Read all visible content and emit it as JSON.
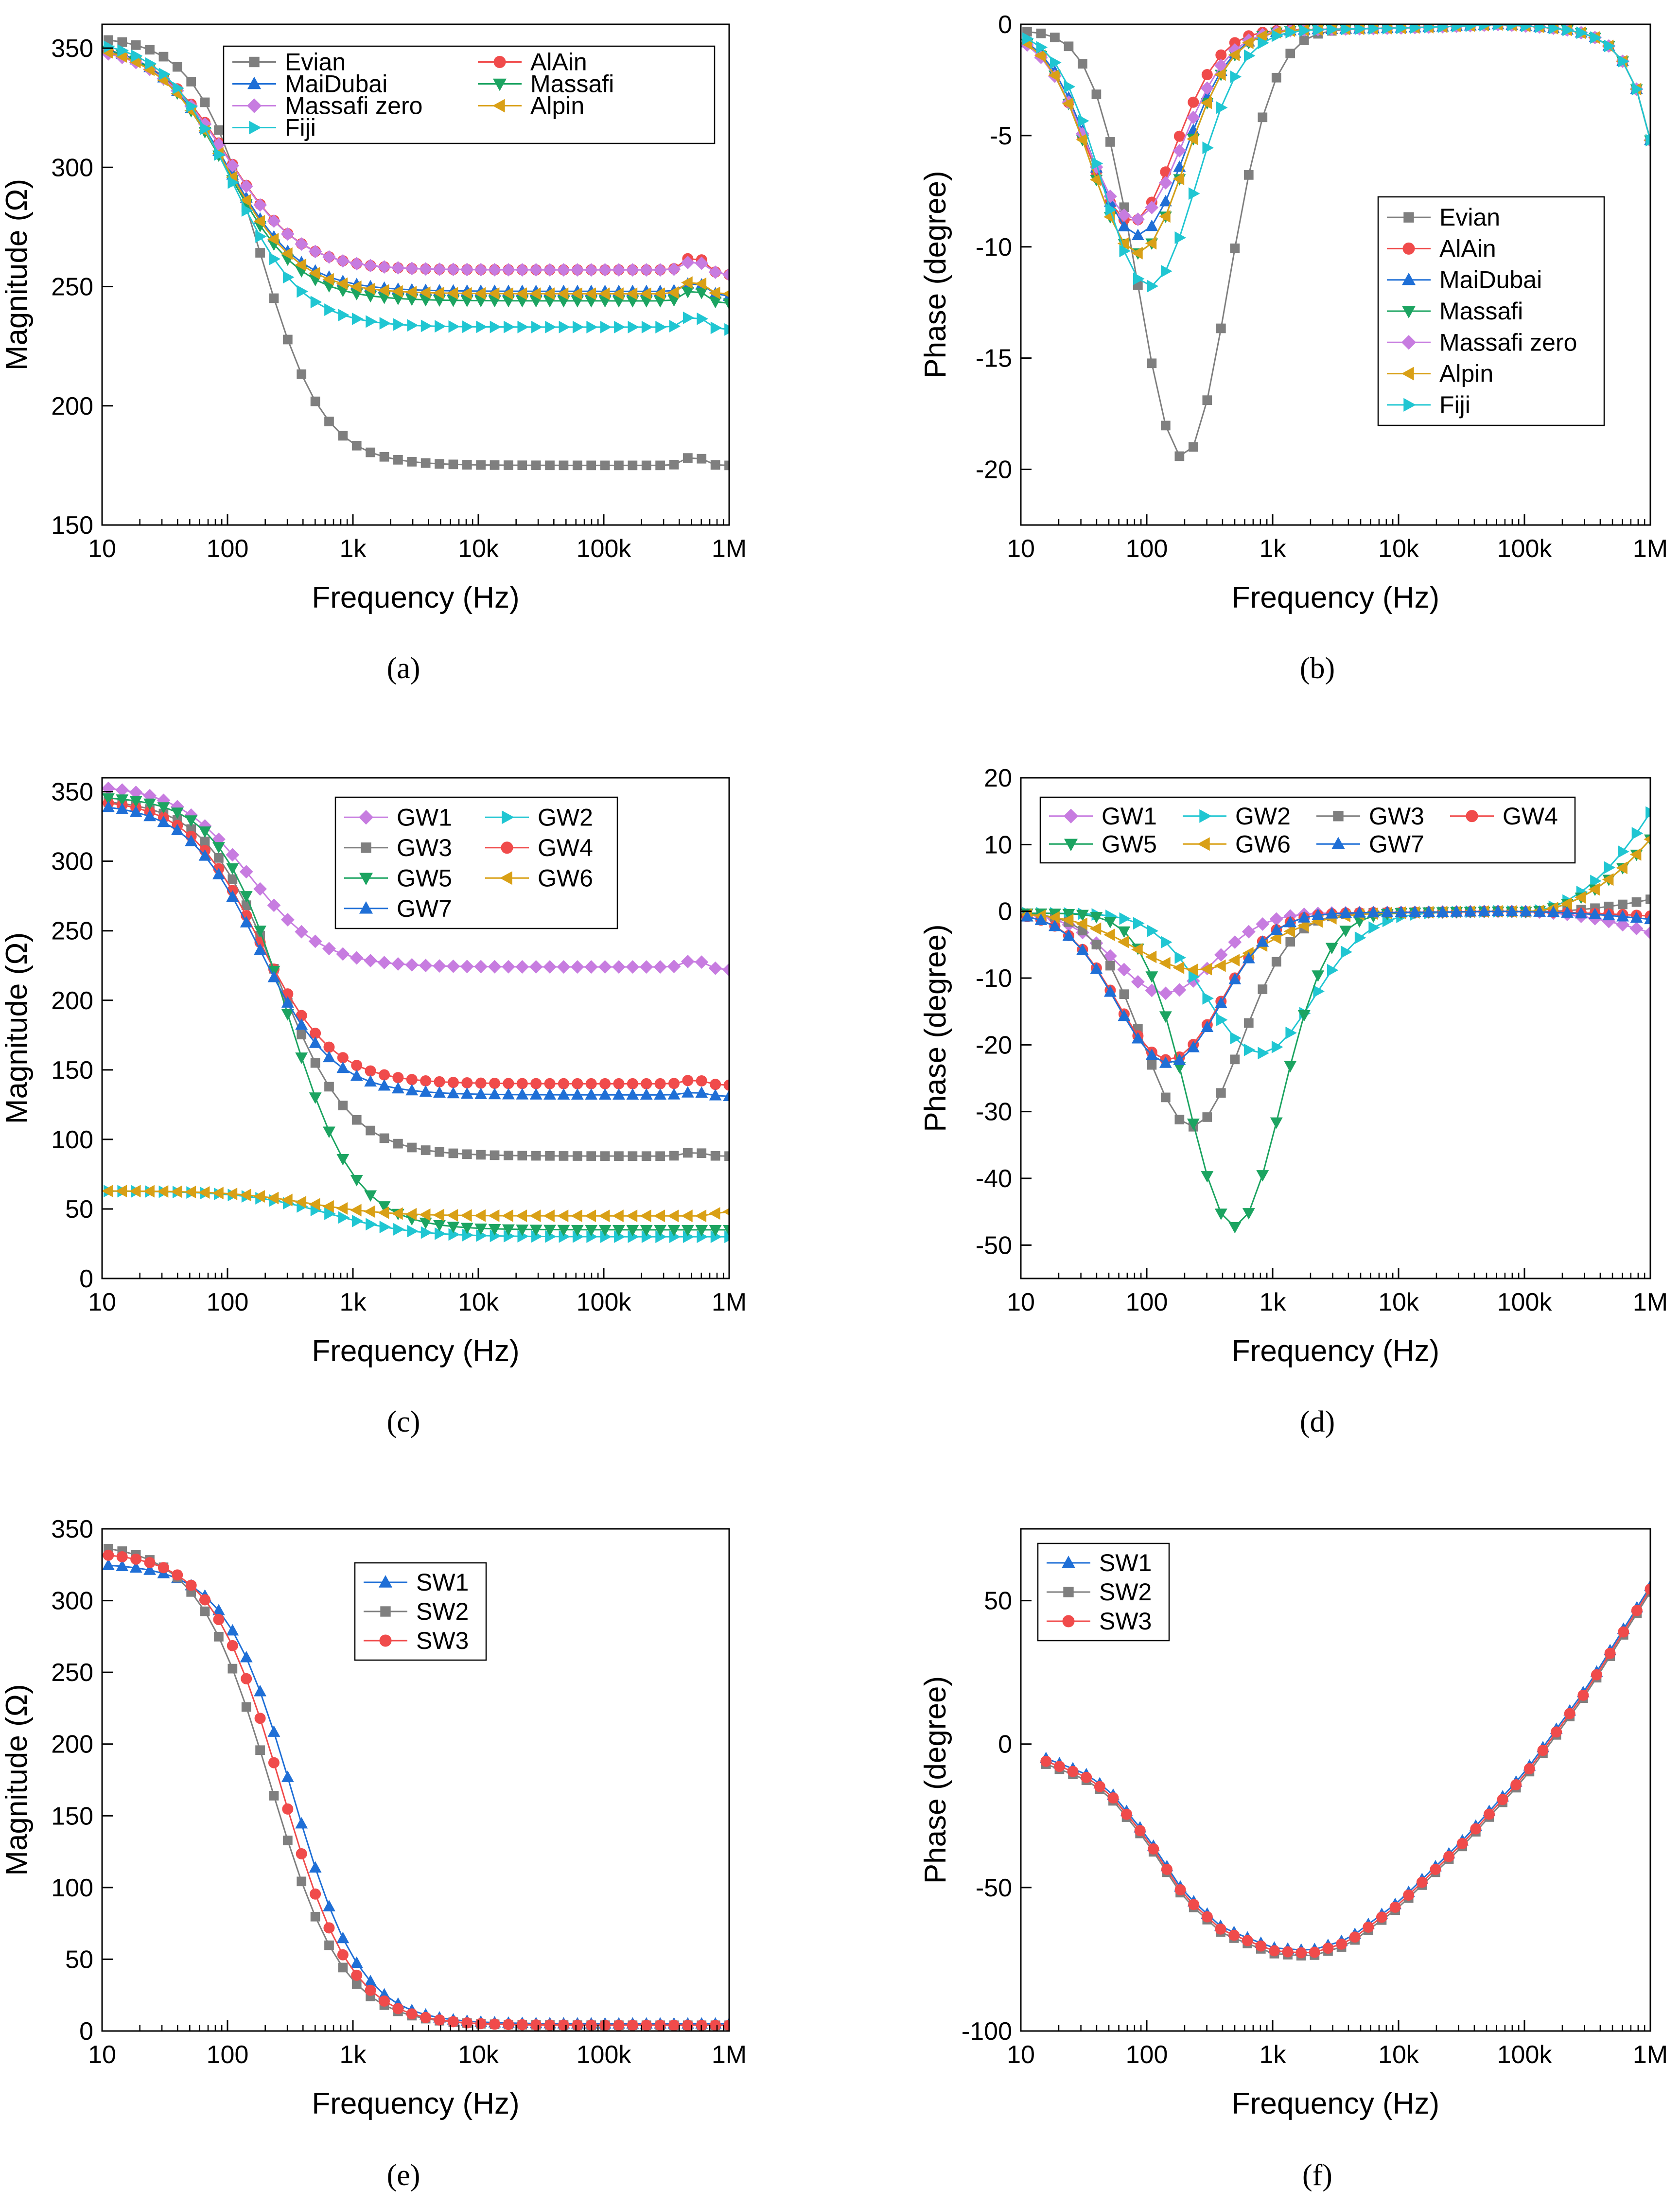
{
  "colors": {
    "Evian": "#7f7f7f",
    "AlAin": "#f04b4b",
    "MaiDubai": "#1f6fd6",
    "Massafi": "#1ca461",
    "Massafi zero": "#c77ce0",
    "Alpin": "#d9a016",
    "Fiji": "#20c6d2",
    "GW1": "#c77ce0",
    "GW2": "#20c6d2",
    "GW3": "#7f7f7f",
    "GW4": "#f04b4b",
    "GW5": "#1ca461",
    "GW6": "#d9a016",
    "GW7": "#1f6fd6",
    "SW1": "#1f6fd6",
    "SW2": "#7f7f7f",
    "SW3": "#f04b4b"
  },
  "markers": {
    "Evian": "square",
    "AlAin": "circle",
    "MaiDubai": "triangle-up",
    "Massafi": "triangle-down",
    "Massafi zero": "diamond",
    "Alpin": "triangle-left",
    "Fiji": "triangle-right",
    "GW1": "diamond",
    "GW2": "triangle-right",
    "GW3": "square",
    "GW4": "circle",
    "GW5": "triangle-down",
    "GW6": "triangle-left",
    "GW7": "triangle-up",
    "SW1": "triangle-up",
    "SW2": "square",
    "SW3": "circle"
  },
  "chart_data": [
    {
      "id": "a",
      "panel_label": "(a)",
      "type": "line",
      "xscale": "log",
      "xlabel": "Frequency (Hz)",
      "ylabel": "Magnitude (Ω)",
      "xlim": [
        10,
        1000000
      ],
      "ylim": [
        150,
        360
      ],
      "xticks": [
        {
          "v": 10,
          "label": "10"
        },
        {
          "v": 100,
          "label": "100"
        },
        {
          "v": 1000,
          "label": "1k"
        },
        {
          "v": 10000,
          "label": "10k"
        },
        {
          "v": 100000,
          "label": "100k"
        },
        {
          "v": 1000000,
          "label": "1M"
        }
      ],
      "yticks": [
        {
          "v": 150,
          "label": "150"
        },
        {
          "v": 200,
          "label": "200"
        },
        {
          "v": 250,
          "label": "250"
        },
        {
          "v": 300,
          "label": "300"
        },
        {
          "v": 350,
          "label": "350"
        }
      ],
      "legend": {
        "position": "top-right",
        "columns": 2,
        "order": [
          "Evian",
          "AlAin",
          "MaiDubai",
          "Massafi",
          "Massafi zero",
          "Alpin",
          "Fiji"
        ]
      },
      "series": [
        {
          "name": "Evian",
          "model": "rc",
          "params": {
            "a": 355,
            "b": 175,
            "fc": 180,
            "n": 1.7,
            "bump": 4
          }
        },
        {
          "name": "AlAin",
          "model": "rc",
          "params": {
            "a": 352,
            "b": 257,
            "fc": 100,
            "n": 1.5,
            "bump": 6,
            "end": 255
          }
        },
        {
          "name": "MaiDubai",
          "model": "rc",
          "params": {
            "a": 353,
            "b": 248,
            "fc": 100,
            "n": 1.5,
            "bump": 4,
            "end": 246
          }
        },
        {
          "name": "Massafi",
          "model": "rc",
          "params": {
            "a": 353,
            "b": 244,
            "fc": 100,
            "n": 1.5,
            "bump": 5,
            "end": 243
          }
        },
        {
          "name": "Massafi zero",
          "model": "rc",
          "params": {
            "a": 351,
            "b": 257,
            "fc": 100,
            "n": 1.5,
            "bump": 4,
            "end": 255
          }
        },
        {
          "name": "Alpin",
          "model": "rc",
          "params": {
            "a": 352,
            "b": 247,
            "fc": 100,
            "n": 1.5,
            "bump": 6,
            "end": 247
          }
        },
        {
          "name": "Fiji",
          "model": "rc",
          "params": {
            "a": 354,
            "b": 233,
            "fc": 110,
            "n": 1.55,
            "bump": 5,
            "end": 232
          }
        }
      ]
    },
    {
      "id": "b",
      "panel_label": "(b)",
      "type": "line",
      "xscale": "log",
      "xlabel": "Frequency (Hz)",
      "ylabel": "Phase (degree)",
      "xlim": [
        10,
        1000000
      ],
      "ylim": [
        -22.5,
        0
      ],
      "xticks": [
        {
          "v": 10,
          "label": "10"
        },
        {
          "v": 100,
          "label": "100"
        },
        {
          "v": 1000,
          "label": "1k"
        },
        {
          "v": 10000,
          "label": "10k"
        },
        {
          "v": 100000,
          "label": "100k"
        },
        {
          "v": 1000000,
          "label": "1M"
        }
      ],
      "yticks": [
        {
          "v": -20,
          "label": "-20"
        },
        {
          "v": -15,
          "label": "-15"
        },
        {
          "v": -10,
          "label": "-10"
        },
        {
          "v": -5,
          "label": "-5"
        },
        {
          "v": 0,
          "label": "0"
        }
      ],
      "legend": {
        "position": "center-right",
        "columns": 1,
        "order": [
          "Evian",
          "AlAin",
          "MaiDubai",
          "Massafi",
          "Massafi zero",
          "Alpin",
          "Fiji"
        ]
      },
      "series": [
        {
          "name": "Evian",
          "model": "phase",
          "params": {
            "d": 19.2,
            "fp": 195,
            "w": 0.5,
            "hf": 2.3
          }
        },
        {
          "name": "AlAin",
          "model": "phase",
          "params": {
            "d": 8.6,
            "fp": 75,
            "w": 0.5,
            "hf": 4.9
          }
        },
        {
          "name": "MaiDubai",
          "model": "phase",
          "params": {
            "d": 9.2,
            "fp": 85,
            "w": 0.52,
            "hf": 4.8
          }
        },
        {
          "name": "Massafi",
          "model": "phase",
          "params": {
            "d": 10.0,
            "fp": 85,
            "w": 0.52,
            "hf": 4.8
          }
        },
        {
          "name": "Massafi zero",
          "model": "phase",
          "params": {
            "d": 8.5,
            "fp": 80,
            "w": 0.53,
            "hf": 4.6
          }
        },
        {
          "name": "Alpin",
          "model": "phase",
          "params": {
            "d": 10.0,
            "fp": 85,
            "w": 0.52,
            "hf": 4.8
          }
        },
        {
          "name": "Fiji",
          "model": "phase",
          "params": {
            "d": 11.5,
            "fp": 105,
            "w": 0.52,
            "hf": 4.8
          }
        }
      ]
    },
    {
      "id": "c",
      "panel_label": "(c)",
      "type": "line",
      "xscale": "log",
      "xlabel": "Frequency (Hz)",
      "ylabel": "Magnitude (Ω)",
      "xlim": [
        10,
        1000000
      ],
      "ylim": [
        0,
        360
      ],
      "xticks": [
        {
          "v": 10,
          "label": "10"
        },
        {
          "v": 100,
          "label": "100"
        },
        {
          "v": 1000,
          "label": "1k"
        },
        {
          "v": 10000,
          "label": "10k"
        },
        {
          "v": 100000,
          "label": "100k"
        },
        {
          "v": 1000000,
          "label": "1M"
        }
      ],
      "yticks": [
        {
          "v": 0,
          "label": "0"
        },
        {
          "v": 50,
          "label": "50"
        },
        {
          "v": 100,
          "label": "100"
        },
        {
          "v": 150,
          "label": "150"
        },
        {
          "v": 200,
          "label": "200"
        },
        {
          "v": 250,
          "label": "250"
        },
        {
          "v": 300,
          "label": "300"
        },
        {
          "v": 350,
          "label": "350"
        }
      ],
      "legend": {
        "position": "top-center",
        "columns": 2,
        "order": [
          "GW1",
          "GW2",
          "GW3",
          "GW4",
          "GW5",
          "GW6",
          "GW7"
        ]
      },
      "series": [
        {
          "name": "GW1",
          "model": "rc",
          "params": {
            "a": 355,
            "b": 224,
            "fc": 150,
            "n": 1.5,
            "bump": 5,
            "end": 222
          }
        },
        {
          "name": "GW2",
          "model": "rc",
          "params": {
            "a": 63,
            "b": 30,
            "fc": 650,
            "n": 1.3,
            "bump": 0
          }
        },
        {
          "name": "GW3",
          "model": "rc",
          "params": {
            "a": 345,
            "b": 88,
            "fc": 250,
            "n": 1.5,
            "bump": 3,
            "end": 88
          }
        },
        {
          "name": "GW4",
          "model": "rc",
          "params": {
            "a": 345,
            "b": 140,
            "fc": 180,
            "n": 1.5,
            "bump": 3,
            "end": 139
          }
        },
        {
          "name": "GW5",
          "model": "rc",
          "params": {
            "a": 347,
            "b": 35,
            "fc": 300,
            "n": 1.6,
            "bump": 0
          }
        },
        {
          "name": "GW6",
          "model": "rc",
          "params": {
            "a": 63,
            "b": 45,
            "fc": 450,
            "n": 1.4,
            "bump": 0,
            "end": 48
          }
        },
        {
          "name": "GW7",
          "model": "rc",
          "params": {
            "a": 342,
            "b": 132,
            "fc": 180,
            "n": 1.5,
            "bump": 2,
            "end": 131
          }
        }
      ]
    },
    {
      "id": "d",
      "panel_label": "(d)",
      "type": "line",
      "xscale": "log",
      "xlabel": "Frequency (Hz)",
      "ylabel": "Phase (degree)",
      "xlim": [
        10,
        1000000
      ],
      "ylim": [
        -55,
        20
      ],
      "xticks": [
        {
          "v": 10,
          "label": "10"
        },
        {
          "v": 100,
          "label": "100"
        },
        {
          "v": 1000,
          "label": "1k"
        },
        {
          "v": 10000,
          "label": "10k"
        },
        {
          "v": 100000,
          "label": "100k"
        },
        {
          "v": 1000000,
          "label": "1M"
        }
      ],
      "yticks": [
        {
          "v": -50,
          "label": "-50"
        },
        {
          "v": -40,
          "label": "-40"
        },
        {
          "v": -30,
          "label": "-30"
        },
        {
          "v": -20,
          "label": "-20"
        },
        {
          "v": -10,
          "label": "-10"
        },
        {
          "v": 0,
          "label": "0"
        },
        {
          "v": 10,
          "label": "10"
        },
        {
          "v": 20,
          "label": "20"
        }
      ],
      "legend": {
        "position": "top",
        "columns": 4,
        "order": [
          "GW1",
          "GW2",
          "GW3",
          "GW4",
          "GW5",
          "GW6",
          "GW7"
        ]
      },
      "series": [
        {
          "name": "GW1",
          "model": "phase",
          "params": {
            "d": 12,
            "fp": 140,
            "w": 0.55,
            "hf": 5.6,
            "rise": -3
          }
        },
        {
          "name": "GW2",
          "model": "phase",
          "params": {
            "d": 21,
            "fp": 800,
            "w": 0.6,
            "hf": 5.2,
            "rise": 15
          }
        },
        {
          "name": "GW3",
          "model": "phase",
          "params": {
            "d": 32,
            "fp": 230,
            "w": 0.55,
            "hf": 5.4,
            "rise": 2
          }
        },
        {
          "name": "GW4",
          "model": "phase",
          "params": {
            "d": 22,
            "fp": 150,
            "w": 0.58,
            "hf": 5.4,
            "rise": -0.5
          }
        },
        {
          "name": "GW5",
          "model": "phase",
          "params": {
            "d": 47,
            "fp": 500,
            "w": 0.52,
            "hf": 5.2,
            "rise": 11
          }
        },
        {
          "name": "GW6",
          "model": "phase",
          "params": {
            "d": 8.5,
            "fp": 250,
            "w": 0.7,
            "hf": 5.2,
            "rise": 11
          }
        },
        {
          "name": "GW7",
          "model": "phase",
          "params": {
            "d": 22.5,
            "fp": 150,
            "w": 0.58,
            "hf": 5.4,
            "rise": -1
          }
        }
      ]
    },
    {
      "id": "e",
      "panel_label": "(e)",
      "type": "line",
      "xscale": "log",
      "xlabel": "Frequency (Hz)",
      "ylabel": "Magnitude (Ω)",
      "xlim": [
        10,
        1000000
      ],
      "ylim": [
        0,
        350
      ],
      "xticks": [
        {
          "v": 10,
          "label": "10"
        },
        {
          "v": 100,
          "label": "100"
        },
        {
          "v": 1000,
          "label": "1k"
        },
        {
          "v": 10000,
          "label": "10k"
        },
        {
          "v": 100000,
          "label": "100k"
        },
        {
          "v": 1000000,
          "label": "1M"
        }
      ],
      "yticks": [
        {
          "v": 0,
          "label": "0"
        },
        {
          "v": 50,
          "label": "50"
        },
        {
          "v": 100,
          "label": "100"
        },
        {
          "v": 150,
          "label": "150"
        },
        {
          "v": 200,
          "label": "200"
        },
        {
          "v": 250,
          "label": "250"
        },
        {
          "v": 300,
          "label": "300"
        },
        {
          "v": 350,
          "label": "350"
        }
      ],
      "legend": {
        "position": "top-center",
        "columns": 1,
        "order": [
          "SW1",
          "SW2",
          "SW3"
        ]
      },
      "series": [
        {
          "name": "SW1",
          "model": "rc",
          "params": {
            "a": 326,
            "b": 5,
            "fc": 330,
            "n": 1.6,
            "bump": 0
          }
        },
        {
          "name": "SW2",
          "model": "rc",
          "params": {
            "a": 340,
            "b": 4,
            "fc": 220,
            "n": 1.5,
            "bump": 0
          }
        },
        {
          "name": "SW3",
          "model": "rc",
          "params": {
            "a": 334,
            "b": 4,
            "fc": 270,
            "n": 1.55,
            "bump": 0
          }
        }
      ]
    },
    {
      "id": "f",
      "panel_label": "(f)",
      "type": "line",
      "xscale": "log",
      "xlabel": "Frequency (Hz)",
      "ylabel": "Phase (degree)",
      "xlim": [
        10,
        1000000
      ],
      "ylim": [
        -100,
        75
      ],
      "xticks": [
        {
          "v": 10,
          "label": "10"
        },
        {
          "v": 100,
          "label": "100"
        },
        {
          "v": 1000,
          "label": "1k"
        },
        {
          "v": 10000,
          "label": "10k"
        },
        {
          "v": 100000,
          "label": "100k"
        },
        {
          "v": 1000000,
          "label": "1M"
        }
      ],
      "yticks": [
        {
          "v": -100,
          "label": "-100"
        },
        {
          "v": -50,
          "label": "-50"
        },
        {
          "v": 0,
          "label": "0"
        },
        {
          "v": 50,
          "label": "50"
        }
      ],
      "legend": {
        "position": "top-left",
        "columns": 1,
        "order": [
          "SW1",
          "SW2",
          "SW3"
        ]
      },
      "series": [
        {
          "name": "SW1",
          "model": "sw",
          "params": {
            "sh": 0
          }
        },
        {
          "name": "SW2",
          "model": "sw",
          "params": {
            "sh": -2
          }
        },
        {
          "name": "SW3",
          "model": "sw",
          "params": {
            "sh": -1
          }
        }
      ]
    }
  ]
}
